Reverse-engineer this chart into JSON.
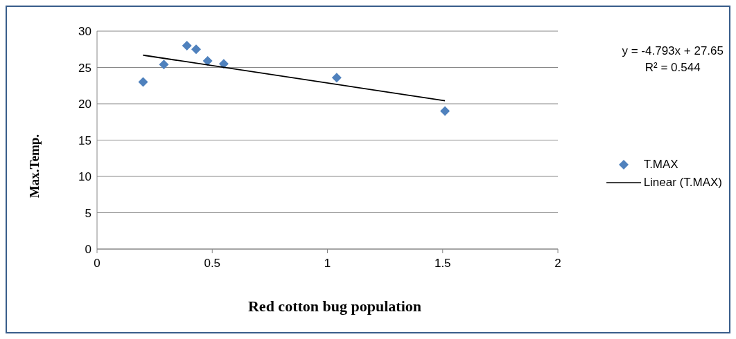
{
  "chart_data": {
    "type": "scatter",
    "xlabel": "Red cotton bug population",
    "ylabel": "Max.Temp.",
    "xlim": [
      0,
      2
    ],
    "xticks": [
      0,
      0.5,
      1,
      1.5,
      2
    ],
    "ylim": [
      0,
      30
    ],
    "yticks": [
      0,
      5,
      10,
      15,
      20,
      25,
      30
    ],
    "grid": "y",
    "legend": "right",
    "marker": "diamond",
    "annotations": [
      "y = -4.793x + 27.65",
      "R² = 0.544"
    ],
    "series": [
      {
        "name": "T.MAX",
        "color": "#4f81bd",
        "x": [
          0.2,
          0.29,
          0.39,
          0.43,
          0.48,
          0.55,
          1.04,
          1.51
        ],
        "values": [
          23,
          25.4,
          28,
          27.5,
          25.9,
          25.5,
          23.6,
          19
        ]
      },
      {
        "name": "Linear (T.MAX)",
        "type": "line",
        "color": "#000000",
        "line_style": "solid",
        "marker": "none",
        "x": [
          0.2,
          1.51
        ],
        "values": [
          26.69,
          20.41
        ]
      }
    ]
  }
}
